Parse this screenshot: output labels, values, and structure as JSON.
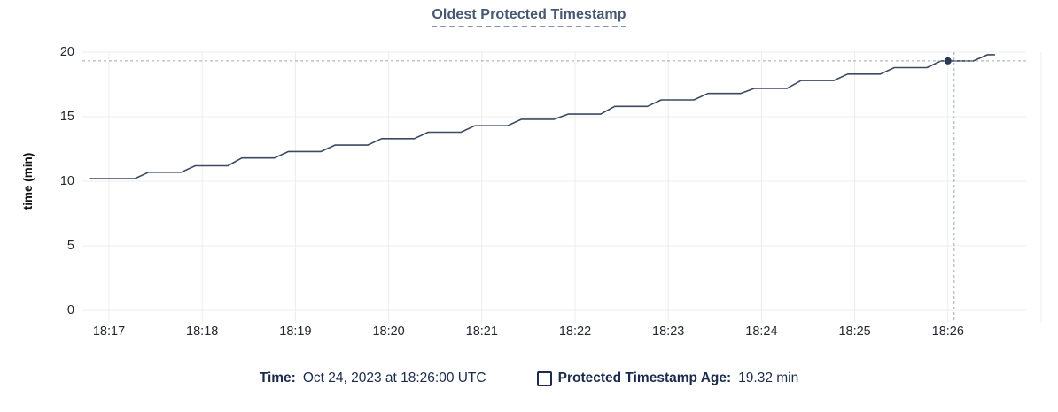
{
  "title": "Oldest Protected Timestamp",
  "legend": {
    "time_label": "Time:",
    "time_value": "Oct 24, 2023 at 18:26:00 UTC",
    "series_label": "Protected Timestamp Age:",
    "series_value": "19.32 min"
  },
  "colors": {
    "title": "#475872",
    "title_underline": "#8494ae",
    "line": "#3b4961",
    "dot": "#2c3a55",
    "grid": "#ececec",
    "crosshair": "#99a8bd",
    "tick_text": "#24292f",
    "legend_text": "#1b2b4d"
  },
  "chart_data": {
    "type": "line",
    "title": "Oldest Protected Timestamp",
    "xlabel": "",
    "ylabel": "time (min)",
    "ylim": [
      0,
      20
    ],
    "y_ticks": [
      0,
      5,
      10,
      15,
      20
    ],
    "x_tick_labels": [
      "18:17",
      "18:18",
      "18:19",
      "18:20",
      "18:21",
      "18:22",
      "18:23",
      "18:24",
      "18:25",
      "18:26"
    ],
    "grid": true,
    "legend_position": "bottom",
    "series": [
      {
        "name": "Protected Timestamp Age",
        "unit": "min",
        "style": "step",
        "points": [
          [
            "18:16:48",
            10.2
          ],
          [
            "18:17:00",
            10.2
          ],
          [
            "18:17:30",
            10.7
          ],
          [
            "18:18:00",
            11.2
          ],
          [
            "18:18:30",
            11.8
          ],
          [
            "18:19:00",
            12.3
          ],
          [
            "18:19:30",
            12.8
          ],
          [
            "18:20:00",
            13.3
          ],
          [
            "18:20:30",
            13.8
          ],
          [
            "18:21:00",
            14.3
          ],
          [
            "18:21:30",
            14.8
          ],
          [
            "18:22:00",
            15.2
          ],
          [
            "18:22:30",
            15.8
          ],
          [
            "18:23:00",
            16.3
          ],
          [
            "18:23:30",
            16.8
          ],
          [
            "18:24:00",
            17.2
          ],
          [
            "18:24:30",
            17.8
          ],
          [
            "18:25:00",
            18.3
          ],
          [
            "18:25:30",
            18.8
          ],
          [
            "18:26:00",
            19.32
          ],
          [
            "18:26:30",
            19.8
          ]
        ]
      }
    ],
    "hover_point": {
      "time": "18:26:00",
      "value": 19.32,
      "time_label": "Oct 24, 2023 at 18:26:00 UTC",
      "value_label": "19.32 min",
      "crosshair": true
    }
  }
}
